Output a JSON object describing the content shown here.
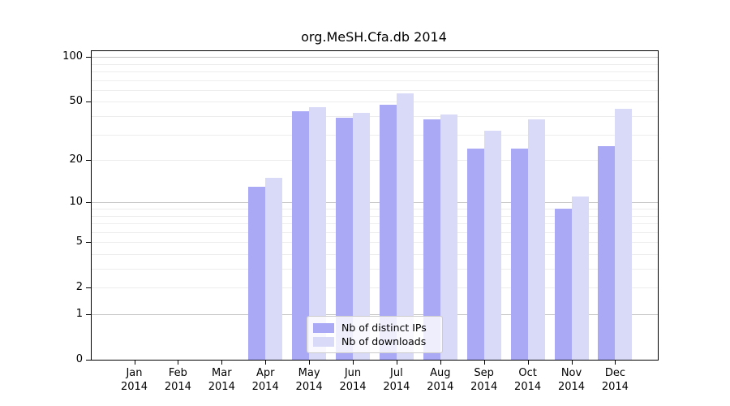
{
  "chart_data": {
    "type": "bar",
    "title": "org.MeSH.Cfa.db 2014",
    "categories": [
      "Jan",
      "Feb",
      "Mar",
      "Apr",
      "May",
      "Jun",
      "Jul",
      "Aug",
      "Sep",
      "Oct",
      "Nov",
      "Dec"
    ],
    "category_year": "2014",
    "series": [
      {
        "name": "Nb of distinct IPs",
        "color": "#a9a9f6",
        "values": [
          0,
          0,
          0,
          13,
          43,
          39,
          48,
          38,
          24,
          24,
          9,
          25
        ]
      },
      {
        "name": "Nb of downloads",
        "color": "#d9d9f8",
        "values": [
          0,
          0,
          0,
          15,
          46,
          42,
          57,
          41,
          32,
          38,
          11,
          45
        ]
      }
    ],
    "yscale": "log10(1+v)",
    "ylim": [
      0,
      110
    ],
    "yticks": [
      100,
      50,
      20,
      10,
      5,
      2,
      1,
      0
    ],
    "major_gridlines": [
      1,
      10,
      100
    ],
    "minor_gridlines": [
      2,
      3,
      4,
      5,
      6,
      7,
      8,
      9,
      20,
      30,
      40,
      50,
      60,
      70,
      80,
      90
    ],
    "grid": true,
    "legend": {
      "position": "lower center",
      "entries": [
        "Nb of distinct IPs",
        "Nb of downloads"
      ]
    },
    "colors": {
      "bar_distinct_ips": "#a9a9f6",
      "bar_downloads": "#d9d9f8",
      "gridline_minor": "#ededed",
      "gridline_major": "#c4c4c4",
      "frame": "#000000",
      "background": "#ffffff"
    }
  }
}
